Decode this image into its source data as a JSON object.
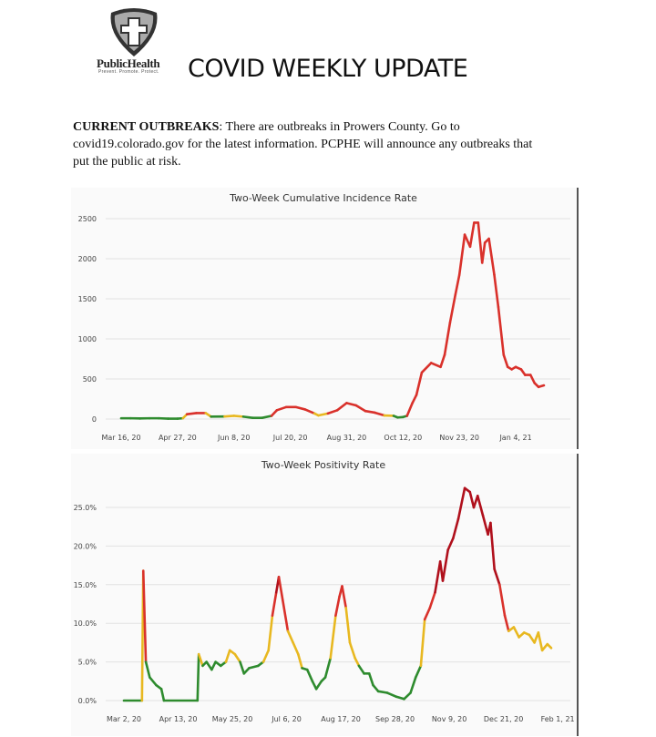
{
  "header": {
    "logo_text": "PublicHealth",
    "logo_tagline": "Prevent. Promote. Protect.",
    "title": "COVID WEEKLY UPDATE"
  },
  "outbreaks": {
    "label": "CURRENT OUTBREAKS",
    "text": ": There are outbreaks in Prowers County. Go to covid19.colorado.gov for the latest information. PCPHE will announce any outbreaks that put the public at risk."
  },
  "colors": {
    "green": "#2e8b2e",
    "yellow": "#e8b820",
    "red": "#d9312b",
    "dark_red": "#b0101c"
  },
  "chart_data": [
    {
      "type": "line",
      "title": "Two-Week Cumulative Incidence Rate",
      "ylim": [
        0,
        2500
      ],
      "yticks": [
        0,
        500,
        1000,
        1500,
        2000,
        2500
      ],
      "ytick_labels": [
        "0",
        "500",
        "1000",
        "1500",
        "2000",
        "2500"
      ],
      "xtick_dates": [
        "2020-03-16",
        "2020-04-27",
        "2020-06-08",
        "2020-07-20",
        "2020-08-31",
        "2020-10-12",
        "2020-11-23",
        "2021-01-04"
      ],
      "xtick_labels": [
        "Mar 16, 20",
        "Apr 27, 20",
        "Jun 8, 20",
        "Jul 20, 20",
        "Aug 31, 20",
        "Oct 12, 20",
        "Nov 23, 20",
        "Jan 4, 21"
      ],
      "grid": true,
      "color_thresholds": [
        35,
        60,
        100000
      ],
      "points": [
        [
          "2020-03-16",
          10
        ],
        [
          "2020-03-23",
          10
        ],
        [
          "2020-03-30",
          8
        ],
        [
          "2020-04-06",
          10
        ],
        [
          "2020-04-13",
          10
        ],
        [
          "2020-04-20",
          5
        ],
        [
          "2020-04-27",
          5
        ],
        [
          "2020-05-01",
          10
        ],
        [
          "2020-05-04",
          60
        ],
        [
          "2020-05-11",
          75
        ],
        [
          "2020-05-18",
          75
        ],
        [
          "2020-05-22",
          30
        ],
        [
          "2020-06-01",
          32
        ],
        [
          "2020-06-08",
          40
        ],
        [
          "2020-06-15",
          30
        ],
        [
          "2020-06-22",
          15
        ],
        [
          "2020-06-29",
          15
        ],
        [
          "2020-07-06",
          40
        ],
        [
          "2020-07-10",
          110
        ],
        [
          "2020-07-17",
          150
        ],
        [
          "2020-07-24",
          150
        ],
        [
          "2020-07-31",
          120
        ],
        [
          "2020-08-07",
          70
        ],
        [
          "2020-08-10",
          45
        ],
        [
          "2020-08-17",
          70
        ],
        [
          "2020-08-24",
          110
        ],
        [
          "2020-08-31",
          200
        ],
        [
          "2020-09-07",
          170
        ],
        [
          "2020-09-14",
          100
        ],
        [
          "2020-09-21",
          80
        ],
        [
          "2020-09-28",
          45
        ],
        [
          "2020-10-05",
          40
        ],
        [
          "2020-10-08",
          20
        ],
        [
          "2020-10-12",
          25
        ],
        [
          "2020-10-15",
          40
        ],
        [
          "2020-10-19",
          200
        ],
        [
          "2020-10-22",
          300
        ],
        [
          "2020-10-26",
          580
        ],
        [
          "2020-11-02",
          700
        ],
        [
          "2020-11-09",
          650
        ],
        [
          "2020-11-12",
          800
        ],
        [
          "2020-11-16",
          1200
        ],
        [
          "2020-11-20",
          1550
        ],
        [
          "2020-11-23",
          1800
        ],
        [
          "2020-11-27",
          2300
        ],
        [
          "2020-12-01",
          2150
        ],
        [
          "2020-12-04",
          2450
        ],
        [
          "2020-12-07",
          2450
        ],
        [
          "2020-12-10",
          1950
        ],
        [
          "2020-12-12",
          2200
        ],
        [
          "2020-12-15",
          2250
        ],
        [
          "2020-12-19",
          1800
        ],
        [
          "2020-12-22",
          1400
        ],
        [
          "2020-12-26",
          800
        ],
        [
          "2020-12-29",
          650
        ],
        [
          "2021-01-01",
          620
        ],
        [
          "2021-01-04",
          650
        ],
        [
          "2021-01-08",
          620
        ],
        [
          "2021-01-11",
          550
        ],
        [
          "2021-01-15",
          550
        ],
        [
          "2021-01-18",
          450
        ],
        [
          "2021-01-21",
          400
        ],
        [
          "2021-01-25",
          420
        ]
      ]
    },
    {
      "type": "line",
      "title": "Two-Week Positivity Rate",
      "ylim": [
        0,
        27.5
      ],
      "yticks": [
        0,
        5,
        10,
        15,
        20,
        25
      ],
      "ytick_labels": [
        "0.0%",
        "5.0%",
        "10.0%",
        "15.0%",
        "20.0%",
        "25.0%"
      ],
      "xtick_dates": [
        "2020-03-02",
        "2020-04-13",
        "2020-05-25",
        "2020-07-06",
        "2020-08-17",
        "2020-09-28",
        "2020-11-09",
        "2020-12-21",
        "2021-02-01"
      ],
      "xtick_labels": [
        "Mar 2, 20",
        "Apr 13, 20",
        "May 25, 20",
        "Jul 6, 20",
        "Aug 17, 20",
        "Sep 28, 20",
        "Nov 9, 20",
        "Dec 21, 20",
        "Feb 1, 21"
      ],
      "grid": true,
      "color_thresholds": [
        5,
        10,
        15
      ],
      "points": [
        [
          "2020-03-02",
          0
        ],
        [
          "2020-03-16",
          0
        ],
        [
          "2020-03-17",
          16.8
        ],
        [
          "2020-03-19",
          5
        ],
        [
          "2020-03-22",
          3
        ],
        [
          "2020-03-27",
          2
        ],
        [
          "2020-03-31",
          1.5
        ],
        [
          "2020-04-02",
          0
        ],
        [
          "2020-04-28",
          0
        ],
        [
          "2020-04-29",
          6
        ],
        [
          "2020-05-02",
          4.5
        ],
        [
          "2020-05-05",
          5
        ],
        [
          "2020-05-09",
          4
        ],
        [
          "2020-05-12",
          5
        ],
        [
          "2020-05-16",
          4.5
        ],
        [
          "2020-05-20",
          5
        ],
        [
          "2020-05-23",
          6.5
        ],
        [
          "2020-05-27",
          6
        ],
        [
          "2020-05-31",
          5
        ],
        [
          "2020-06-03",
          3.5
        ],
        [
          "2020-06-07",
          4.2
        ],
        [
          "2020-06-14",
          4.5
        ],
        [
          "2020-06-18",
          5
        ],
        [
          "2020-06-22",
          6.5
        ],
        [
          "2020-06-25",
          11
        ],
        [
          "2020-06-28",
          14
        ],
        [
          "2020-06-30",
          16
        ],
        [
          "2020-07-03",
          13
        ],
        [
          "2020-07-07",
          9
        ],
        [
          "2020-07-11",
          7.5
        ],
        [
          "2020-07-15",
          6
        ],
        [
          "2020-07-18",
          4.2
        ],
        [
          "2020-07-22",
          4
        ],
        [
          "2020-07-26",
          2.5
        ],
        [
          "2020-07-29",
          1.5
        ],
        [
          "2020-08-02",
          2.5
        ],
        [
          "2020-08-05",
          3
        ],
        [
          "2020-08-09",
          5.5
        ],
        [
          "2020-08-13",
          11
        ],
        [
          "2020-08-16",
          13.5
        ],
        [
          "2020-08-18",
          14.8
        ],
        [
          "2020-08-21",
          12
        ],
        [
          "2020-08-24",
          7.5
        ],
        [
          "2020-08-28",
          5.5
        ],
        [
          "2020-08-31",
          4.5
        ],
        [
          "2020-09-04",
          3.5
        ],
        [
          "2020-09-08",
          3.5
        ],
        [
          "2020-09-11",
          2
        ],
        [
          "2020-09-15",
          1.2
        ],
        [
          "2020-09-22",
          1
        ],
        [
          "2020-09-29",
          0.5
        ],
        [
          "2020-10-05",
          0.2
        ],
        [
          "2020-10-10",
          1
        ],
        [
          "2020-10-14",
          3
        ],
        [
          "2020-10-18",
          4.5
        ],
        [
          "2020-10-21",
          10.5
        ],
        [
          "2020-10-25",
          12
        ],
        [
          "2020-10-29",
          14
        ],
        [
          "2020-11-02",
          18
        ],
        [
          "2020-11-04",
          15.5
        ],
        [
          "2020-11-08",
          19.5
        ],
        [
          "2020-11-12",
          21
        ],
        [
          "2020-11-16",
          23.5
        ],
        [
          "2020-11-21",
          27.5
        ],
        [
          "2020-11-25",
          27
        ],
        [
          "2020-11-28",
          25
        ],
        [
          "2020-12-01",
          26.5
        ],
        [
          "2020-12-05",
          24
        ],
        [
          "2020-12-09",
          21.5
        ],
        [
          "2020-12-11",
          23
        ],
        [
          "2020-12-14",
          17
        ],
        [
          "2020-12-18",
          15
        ],
        [
          "2020-12-22",
          11
        ],
        [
          "2020-12-25",
          9
        ],
        [
          "2020-12-29",
          9.5
        ],
        [
          "2021-01-02",
          8.2
        ],
        [
          "2021-01-06",
          8.8
        ],
        [
          "2021-01-10",
          8.5
        ],
        [
          "2021-01-14",
          7.5
        ],
        [
          "2021-01-17",
          8.8
        ],
        [
          "2021-01-20",
          6.5
        ],
        [
          "2021-01-24",
          7.3
        ],
        [
          "2021-01-27",
          6.8
        ]
      ]
    }
  ]
}
